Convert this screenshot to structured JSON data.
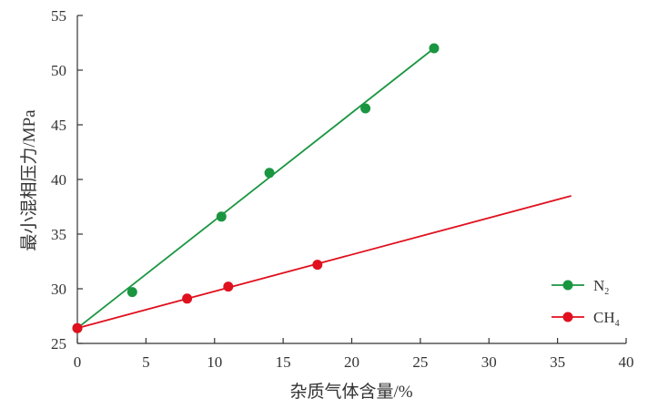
{
  "chart_data": {
    "type": "scatter",
    "xlabel": "杂质气体含量/%",
    "ylabel": "最小混相压力/MPa",
    "xlim": [
      0,
      40
    ],
    "ylim": [
      25,
      55
    ],
    "xticks": [
      0,
      5,
      10,
      15,
      20,
      25,
      30,
      35,
      40
    ],
    "yticks": [
      25,
      30,
      35,
      40,
      45,
      50,
      55
    ],
    "grid": false,
    "legend_position": "right",
    "series": [
      {
        "name": "N",
        "name_subscript": "2",
        "color": "#1a9641",
        "points": [
          {
            "x": 0,
            "y": 26.4
          },
          {
            "x": 4,
            "y": 29.7
          },
          {
            "x": 10.5,
            "y": 36.6
          },
          {
            "x": 14,
            "y": 40.6
          },
          {
            "x": 21,
            "y": 46.5
          },
          {
            "x": 26,
            "y": 52.0
          }
        ],
        "fit_line": {
          "x": [
            0,
            26
          ],
          "y": [
            26.4,
            52.0
          ]
        }
      },
      {
        "name": "CH",
        "name_subscript": "4",
        "color": "#e0101e",
        "points": [
          {
            "x": 0,
            "y": 26.4
          },
          {
            "x": 8,
            "y": 29.1
          },
          {
            "x": 11,
            "y": 30.2
          },
          {
            "x": 17.5,
            "y": 32.2
          }
        ],
        "fit_line": {
          "x": [
            0,
            36
          ],
          "y": [
            26.4,
            38.5
          ]
        }
      }
    ]
  }
}
